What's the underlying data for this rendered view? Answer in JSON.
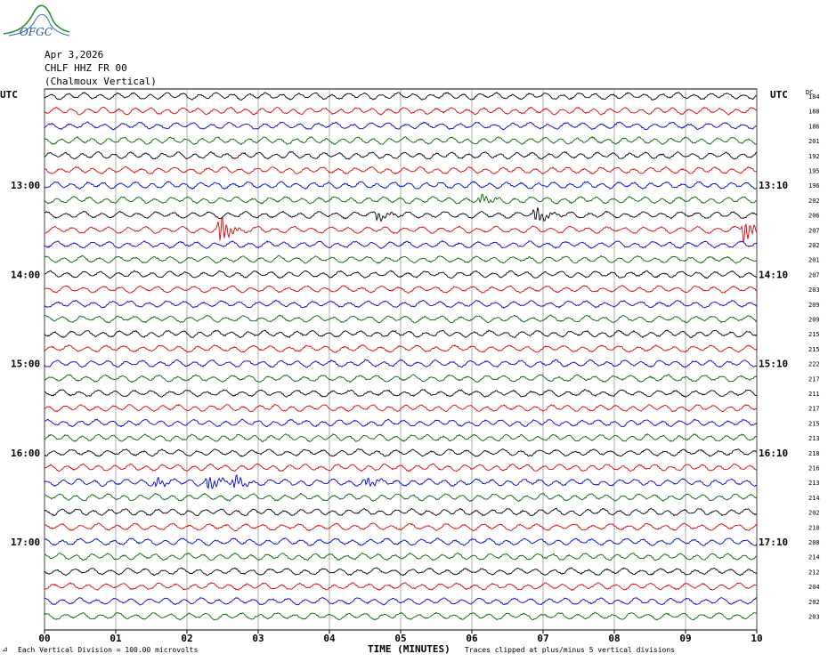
{
  "header": {
    "logo_text": "OFGC",
    "date": "Apr 3,2026",
    "station": "CHLF HHZ FR 00",
    "component": "(Chalmoux Vertical)"
  },
  "axes": {
    "left_tz": "UTC",
    "right_tz": "UTC",
    "dc_label": "DC"
  },
  "footer": {
    "scale_note": "Each Vertical Division =  100.00 microvolts",
    "x_title": "TIME (MINUTES)",
    "clip_note": "Traces clipped at plus/minus 5 vertical divisions"
  },
  "colors": {
    "black": "#000000",
    "red": "#dd0000",
    "blue": "#0000cc",
    "green": "#006600"
  },
  "chart_data": {
    "type": "line",
    "title": "CHLF HHZ FR 00 (Chalmoux Vertical)",
    "xlabel": "TIME (MINUTES)",
    "xlim": [
      0,
      10
    ],
    "x_ticks": [
      "00",
      "01",
      "02",
      "03",
      "04",
      "05",
      "06",
      "07",
      "08",
      "09",
      "10"
    ],
    "left_hour_labels": [
      {
        "row": 6,
        "label": "13:00"
      },
      {
        "row": 12,
        "label": "14:00"
      },
      {
        "row": 18,
        "label": "15:00"
      },
      {
        "row": 24,
        "label": "16:00"
      },
      {
        "row": 30,
        "label": "17:00"
      }
    ],
    "right_hour_labels": [
      {
        "row": 6,
        "label": "13:10"
      },
      {
        "row": 12,
        "label": "14:10"
      },
      {
        "row": 18,
        "label": "15:10"
      },
      {
        "row": 24,
        "label": "16:10"
      },
      {
        "row": 30,
        "label": "17:10"
      }
    ],
    "color_cycle": [
      "black",
      "red",
      "blue",
      "green"
    ],
    "dc_offsets": [
      184,
      188,
      186,
      201,
      192,
      195,
      196,
      202,
      206,
      207,
      202,
      201,
      207,
      203,
      209,
      209,
      215,
      215,
      222,
      217,
      211,
      217,
      215,
      213,
      218,
      216,
      213,
      214,
      202,
      210,
      208,
      214,
      212,
      204,
      202,
      203
    ],
    "events": [
      {
        "row": 8,
        "minute": 4.65,
        "amp": 6
      },
      {
        "row": 7,
        "minute": 6.1,
        "amp": 6
      },
      {
        "row": 8,
        "minute": 6.88,
        "amp": 10
      },
      {
        "row": 9,
        "minute": 2.45,
        "amp": 18
      },
      {
        "row": 9,
        "minute": 9.8,
        "amp": 16
      },
      {
        "row": 26,
        "minute": 1.55,
        "amp": 6
      },
      {
        "row": 26,
        "minute": 2.28,
        "amp": 10
      },
      {
        "row": 26,
        "minute": 2.65,
        "amp": 8
      },
      {
        "row": 26,
        "minute": 4.5,
        "amp": 6
      }
    ]
  }
}
